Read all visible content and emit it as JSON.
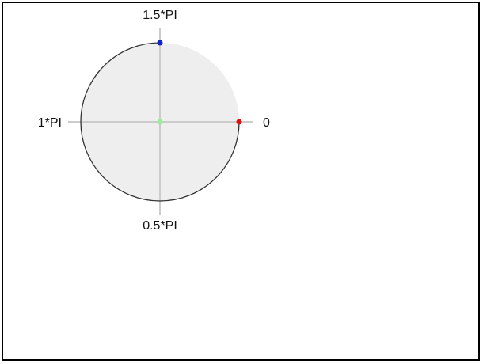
{
  "angle_labels": {
    "zero": "0",
    "half_pi": "0.5*PI",
    "pi": "1*PI",
    "one_and_half_pi": "1.5*PI"
  },
  "colors": {
    "circle_fill": "#eeeeee",
    "circle_stroke": "#333333",
    "axis_line": "#cccccc",
    "point_zero": "#dd1111",
    "point_one_and_half_pi": "#1122cc",
    "point_center": "#99ee99"
  }
}
